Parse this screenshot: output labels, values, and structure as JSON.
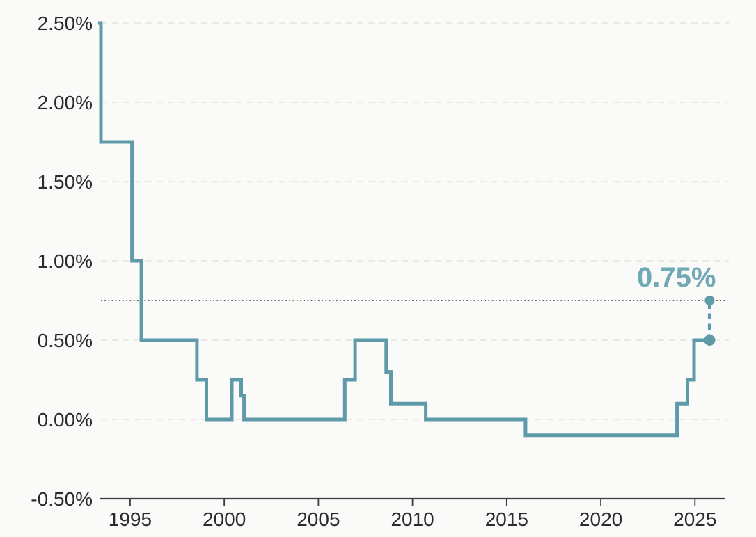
{
  "chart_data": {
    "type": "line",
    "style": "step",
    "description": "Policy interest rate over time with projected next rate",
    "xlabel": "",
    "ylabel": "",
    "x_ticks": [
      "1995",
      "2000",
      "2005",
      "2010",
      "2015",
      "2020",
      "2025"
    ],
    "x_tick_years": [
      1995,
      2000,
      2005,
      2010,
      2015,
      2020,
      2025
    ],
    "y_ticks": [
      {
        "value": 2.5,
        "label": "2.50%"
      },
      {
        "value": 2.0,
        "label": "2.00%"
      },
      {
        "value": 1.5,
        "label": "1.50%"
      },
      {
        "value": 1.0,
        "label": "1.00%"
      },
      {
        "value": 0.5,
        "label": "0.50%"
      },
      {
        "value": 0.0,
        "label": "0.00%"
      },
      {
        "value": -0.5,
        "label": "-0.50%"
      }
    ],
    "xlim": [
      1993.45,
      2026.8
    ],
    "ylim": [
      -0.5,
      2.5
    ],
    "grid": "horizontal-dashed",
    "legend": "none",
    "series": [
      {
        "name": "policy-rate",
        "unit": "%",
        "points": [
          {
            "year": 1993.3,
            "rate": 2.5
          },
          {
            "year": 1993.45,
            "rate": 1.75
          },
          {
            "year": 1995.1,
            "rate": 1.0
          },
          {
            "year": 1995.6,
            "rate": 0.5
          },
          {
            "year": 1998.55,
            "rate": 0.25
          },
          {
            "year": 1999.05,
            "rate": 0.0
          },
          {
            "year": 2000.4,
            "rate": 0.25
          },
          {
            "year": 2000.9,
            "rate": 0.15
          },
          {
            "year": 2001.05,
            "rate": 0.0
          },
          {
            "year": 2006.4,
            "rate": 0.25
          },
          {
            "year": 2006.95,
            "rate": 0.5
          },
          {
            "year": 2008.6,
            "rate": 0.3
          },
          {
            "year": 2008.85,
            "rate": 0.1
          },
          {
            "year": 2010.7,
            "rate": 0.0
          },
          {
            "year": 2016.0,
            "rate": -0.1
          },
          {
            "year": 2024.05,
            "rate": 0.1
          },
          {
            "year": 2024.6,
            "rate": 0.25
          },
          {
            "year": 2024.95,
            "rate": 0.5
          }
        ],
        "end_year": 2025.78
      }
    ],
    "projection": {
      "year": 2025.78,
      "from_rate": 0.5,
      "to_rate": 0.75,
      "label": "0.75%"
    },
    "reference_line": {
      "value": 0.75,
      "style": "dotted"
    }
  },
  "colors": {
    "line": "#5f9aa9",
    "annotation_text": "#72a9b6",
    "grid": "#e4e3e1",
    "reference": "#4d4d4d",
    "axis": "#3c3c3c",
    "tick_text": "#2b2b2b",
    "background": "#fafaf9"
  }
}
